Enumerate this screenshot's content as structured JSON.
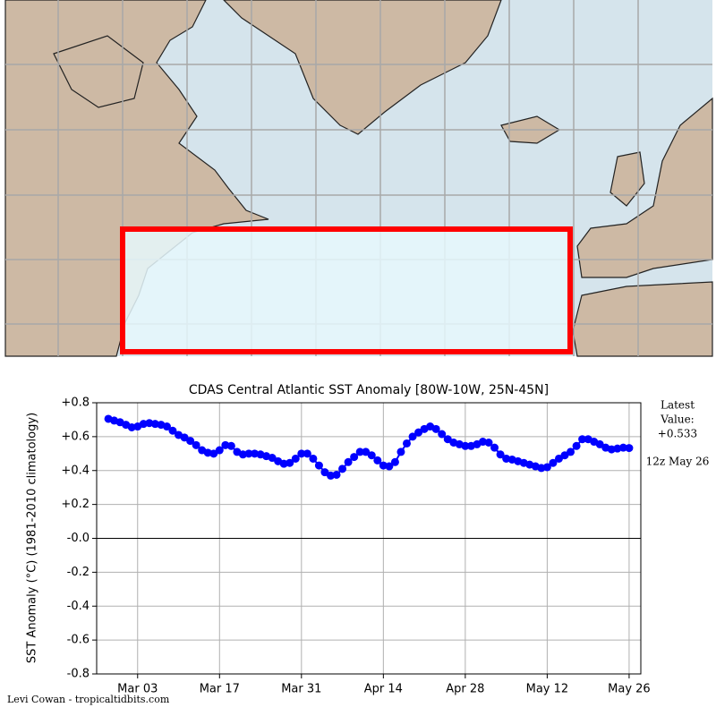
{
  "chart_data": {
    "type": "line",
    "title": "CDAS Central Atlantic SST Anomaly [80W-10W, 25N-45N]",
    "y_label": "SST Anomaly (°C) (1981-2010 climatology)",
    "categories": [
      null,
      null,
      null,
      null,
      null,
      "Mar 03",
      null,
      null,
      null,
      null,
      null,
      null,
      null,
      null,
      null,
      null,
      null,
      null,
      null,
      "Mar 17",
      null,
      null,
      null,
      null,
      null,
      null,
      null,
      null,
      null,
      null,
      null,
      null,
      null,
      "Mar 31",
      null,
      null,
      null,
      null,
      null,
      null,
      null,
      null,
      null,
      null,
      null,
      null,
      null,
      "Apr 14",
      null,
      null,
      null,
      null,
      null,
      null,
      null,
      null,
      null,
      null,
      null,
      null,
      null,
      "Apr 28",
      null,
      null,
      null,
      null,
      null,
      null,
      null,
      null,
      null,
      null,
      null,
      null,
      null,
      "May 12",
      null,
      null,
      null,
      null,
      null,
      null,
      null,
      null,
      null,
      null,
      null,
      null,
      null,
      "May 26"
    ],
    "series": [
      {
        "name": "SST Anomaly",
        "color": "#0000ff",
        "values": [
          0.705,
          0.695,
          0.685,
          0.67,
          0.655,
          0.66,
          0.675,
          0.68,
          0.675,
          0.67,
          0.66,
          0.635,
          0.61,
          0.595,
          0.575,
          0.55,
          0.52,
          0.505,
          0.5,
          0.52,
          0.55,
          0.545,
          0.51,
          0.495,
          0.5,
          0.5,
          0.495,
          0.485,
          0.475,
          0.455,
          0.44,
          0.445,
          0.47,
          0.5,
          0.5,
          0.47,
          0.43,
          0.39,
          0.37,
          0.375,
          0.41,
          0.45,
          0.48,
          0.51,
          0.51,
          0.49,
          0.46,
          0.43,
          0.425,
          0.45,
          0.51,
          0.56,
          0.6,
          0.625,
          0.645,
          0.66,
          0.645,
          0.615,
          0.585,
          0.565,
          0.555,
          0.545,
          0.545,
          0.555,
          0.57,
          0.565,
          0.535,
          0.495,
          0.47,
          0.465,
          0.455,
          0.445,
          0.435,
          0.425,
          0.415,
          0.42,
          0.445,
          0.47,
          0.49,
          0.51,
          0.545,
          0.585,
          0.585,
          0.57,
          0.555,
          0.535,
          0.525,
          0.53,
          0.535,
          0.533
        ]
      }
    ],
    "ylim": [
      -0.8,
      0.8
    ],
    "yticks": [
      {
        "value": -0.8,
        "label": "-0.8"
      },
      {
        "value": -0.6,
        "label": "-0.6"
      },
      {
        "value": -0.4,
        "label": "-0.4"
      },
      {
        "value": -0.2,
        "label": "-0.2"
      },
      {
        "value": 0,
        "label": "-0.0"
      },
      {
        "value": 0.2,
        "label": "+0.2"
      },
      {
        "value": 0.4,
        "label": "+0.4"
      },
      {
        "value": 0.6,
        "label": "+0.6"
      },
      {
        "value": 0.8,
        "label": "+0.8"
      }
    ],
    "grid": true,
    "zero_line": true,
    "annotations": {
      "latest_lines": [
        "Latest",
        "Value:",
        "+0.533"
      ],
      "time": "12z May 26"
    },
    "credit": "Levi Cowan - tropicaltidbits.com"
  }
}
